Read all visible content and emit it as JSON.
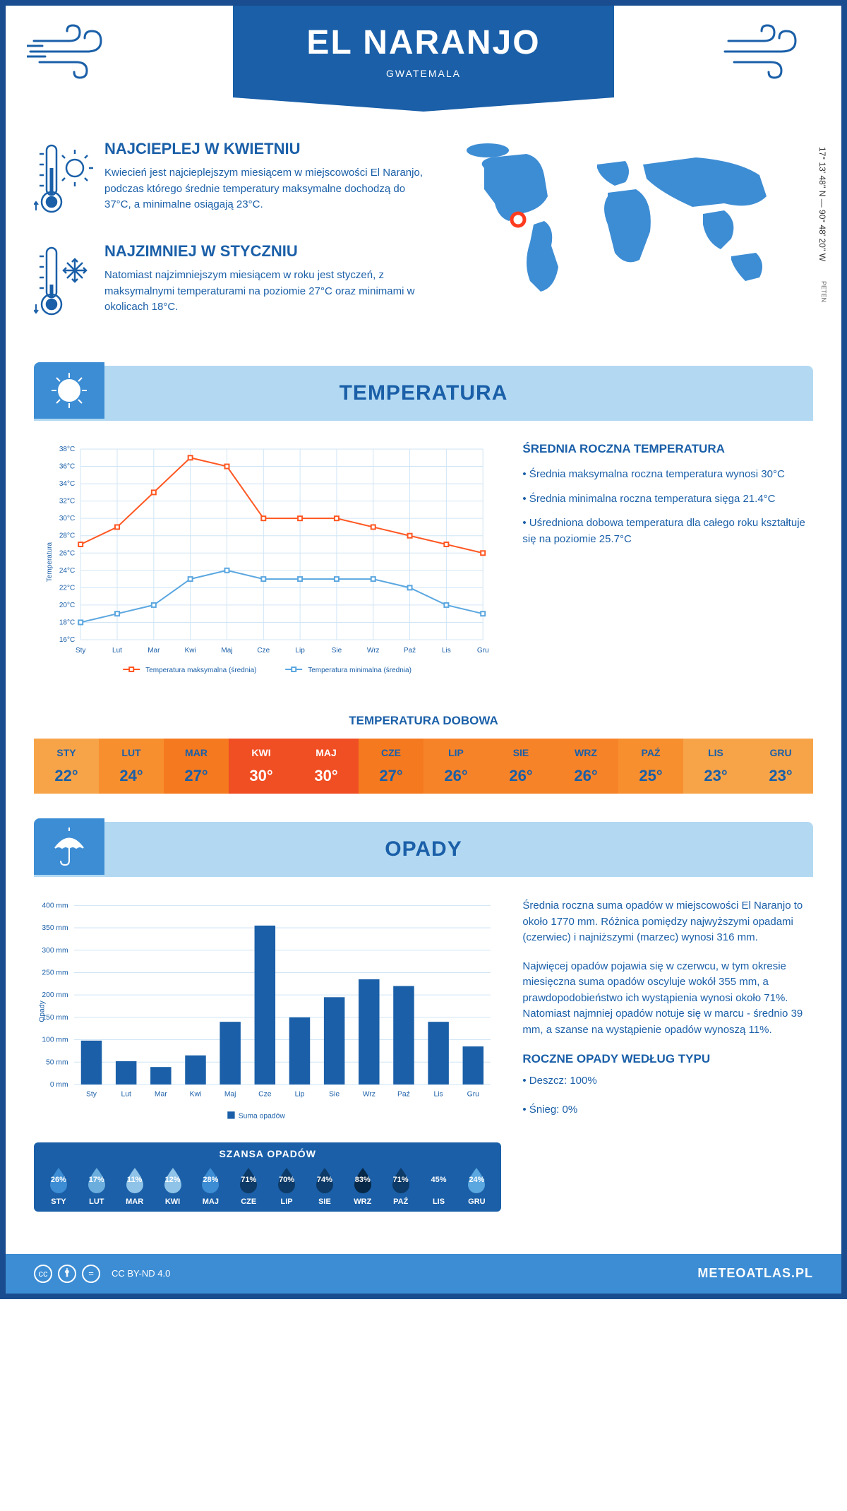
{
  "header": {
    "city": "EL NARANJO",
    "country": "GWATEMALA"
  },
  "coords": "17° 13' 48'' N — 90° 48' 20'' W",
  "region": "PETEN",
  "hot": {
    "title": "NAJCIEPLEJ W KWIETNIU",
    "text": "Kwiecień jest najcieplejszym miesiącem w miejscowości El Naranjo, podczas którego średnie temperatury maksymalne dochodzą do 37°C, a minimalne osiągają 23°C."
  },
  "cold": {
    "title": "NAJZIMNIEJ W STYCZNIU",
    "text": "Natomiast najzimniejszym miesiącem w roku jest styczeń, z maksymalnymi temperaturami na poziomie 27°C oraz minimami w okolicach 18°C."
  },
  "section_temp": "TEMPERATURA",
  "temp_chart": {
    "type": "line",
    "months": [
      "Sty",
      "Lut",
      "Mar",
      "Kwi",
      "Maj",
      "Cze",
      "Lip",
      "Sie",
      "Wrz",
      "Paź",
      "Lis",
      "Gru"
    ],
    "yaxis_label": "Temperatura",
    "ylim": [
      16,
      38
    ],
    "ytick_step": 2,
    "ytick_suffix": "°C",
    "series": [
      {
        "name": "Temperatura maksymalna (średnia)",
        "color": "#ff5722",
        "values": [
          27,
          29,
          33,
          37,
          36,
          30,
          30,
          30,
          29,
          28,
          27,
          26
        ]
      },
      {
        "name": "Temperatura minimalna (średnia)",
        "color": "#5ba7e0",
        "values": [
          18,
          19,
          20,
          23,
          24,
          23,
          23,
          23,
          23,
          22,
          20,
          19
        ]
      }
    ],
    "grid_color": "#d0e5f5",
    "background": "#ffffff",
    "label_fontsize": 10
  },
  "temp_info": {
    "title": "ŚREDNIA ROCZNA TEMPERATURA",
    "lines": [
      "• Średnia maksymalna roczna temperatura wynosi 30°C",
      "• Średnia minimalna roczna temperatura sięga 21.4°C",
      "• Uśredniona dobowa temperatura dla całego roku kształtuje się na poziomie 25.7°C"
    ]
  },
  "daily_title": "TEMPERATURA DOBOWA",
  "daily": {
    "months": [
      "STY",
      "LUT",
      "MAR",
      "KWI",
      "MAJ",
      "CZE",
      "LIP",
      "SIE",
      "WRZ",
      "PAŹ",
      "LIS",
      "GRU"
    ],
    "values": [
      "22°",
      "24°",
      "27°",
      "30°",
      "30°",
      "27°",
      "26°",
      "26°",
      "26°",
      "25°",
      "23°",
      "23°"
    ],
    "colors": [
      "#f7a449",
      "#f78f2f",
      "#f5791e",
      "#f04e23",
      "#f04e23",
      "#f5791e",
      "#f78329",
      "#f78329",
      "#f78329",
      "#f78f2f",
      "#f7a449",
      "#f7a449"
    ],
    "text_colors": [
      "#1a5fa8",
      "#1a5fa8",
      "#1a5fa8",
      "#ffffff",
      "#ffffff",
      "#1a5fa8",
      "#1a5fa8",
      "#1a5fa8",
      "#1a5fa8",
      "#1a5fa8",
      "#1a5fa8",
      "#1a5fa8"
    ]
  },
  "section_opady": "OPADY",
  "opady_chart": {
    "type": "bar",
    "months": [
      "Sty",
      "Lut",
      "Mar",
      "Kwi",
      "Maj",
      "Cze",
      "Lip",
      "Sie",
      "Wrz",
      "Paź",
      "Lis",
      "Gru"
    ],
    "values": [
      98,
      52,
      39,
      65,
      140,
      355,
      150,
      195,
      235,
      220,
      140,
      85
    ],
    "yaxis_label": "Opady",
    "ylim": [
      0,
      400
    ],
    "ytick_step": 50,
    "ytick_suffix": " mm",
    "bar_color": "#1a5fa8",
    "grid_color": "#d0e5f5",
    "legend": "Suma opadów",
    "label_fontsize": 10
  },
  "opady_text1": "Średnia roczna suma opadów w miejscowości El Naranjo to około 1770 mm. Różnica pomiędzy najwyższymi opadami (czerwiec) i najniższymi (marzec) wynosi 316 mm.",
  "opady_text2": "Najwięcej opadów pojawia się w czerwcu, w tym okresie miesięczna suma opadów oscyluje wokół 355 mm, a prawdopodobieństwo ich wystąpienia wynosi około 71%. Natomiast najmniej opadów notuje się w marcu - średnio 39 mm, a szanse na wystąpienie opadów wynoszą 11%.",
  "opady_type_title": "ROCZNE OPADY WEDŁUG TYPU",
  "opady_type_lines": [
    "• Deszcz: 100%",
    "• Śnieg: 0%"
  ],
  "rain_chance": {
    "title": "SZANSA OPADÓW",
    "months": [
      "STY",
      "LUT",
      "MAR",
      "KWI",
      "MAJ",
      "CZE",
      "LIP",
      "SIE",
      "WRZ",
      "PAŹ",
      "LIS",
      "GRU"
    ],
    "values": [
      "26%",
      "17%",
      "11%",
      "12%",
      "28%",
      "71%",
      "70%",
      "74%",
      "83%",
      "71%",
      "45%",
      "24%"
    ],
    "drop_colors": [
      "#3d8dd4",
      "#6baede",
      "#8fc3e8",
      "#8fc3e8",
      "#3d8dd4",
      "#0d3a66",
      "#0d3a66",
      "#0d3a66",
      "#072847",
      "#0d3a66",
      "#1a5fa8",
      "#5ba7e0"
    ]
  },
  "footer": {
    "license": "CC BY-ND 4.0",
    "site": "METEOATLAS.PL"
  }
}
